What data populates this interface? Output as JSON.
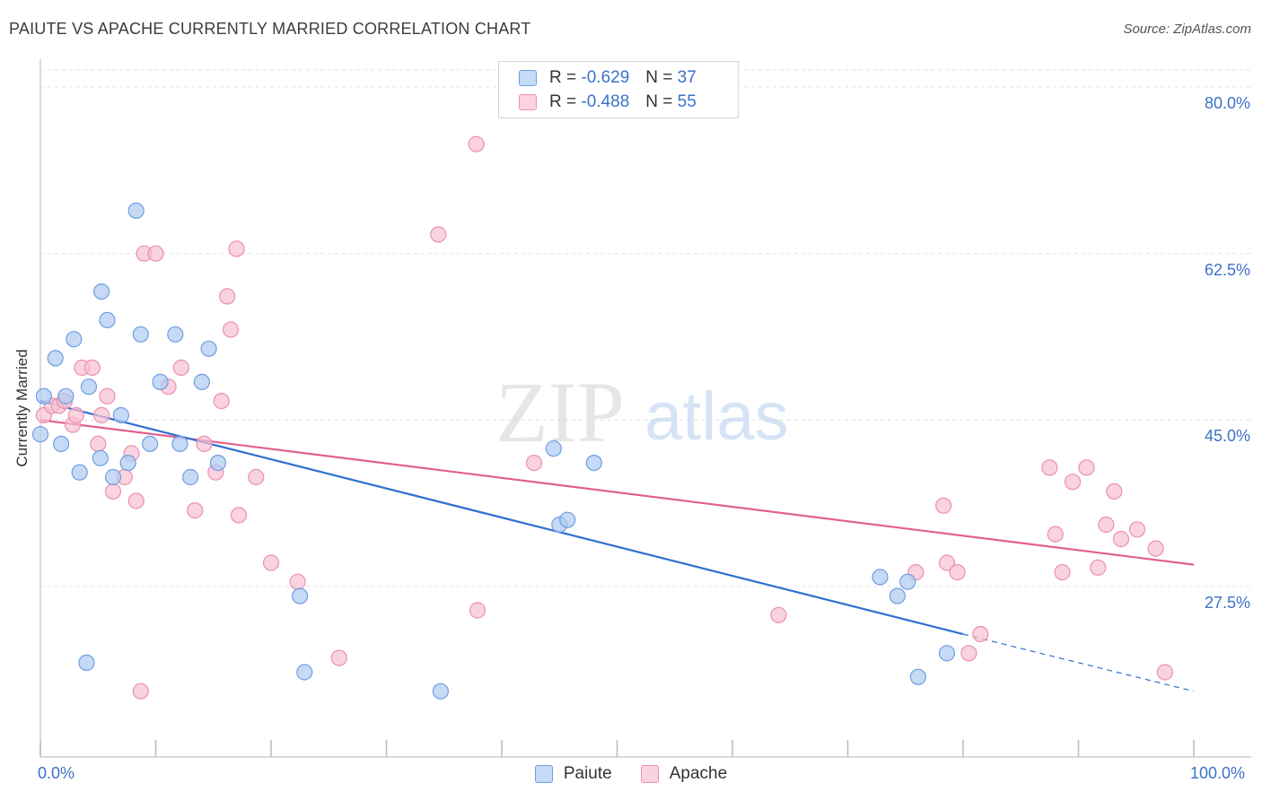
{
  "title": "PAIUTE VS APACHE CURRENTLY MARRIED CORRELATION CHART",
  "source": "Source: ZipAtlas.com",
  "watermark": {
    "zip": "ZIP",
    "atlas": "atlas"
  },
  "legend": {
    "paiute": {
      "r_label": "R =",
      "r_value": "-0.629",
      "n_label": "N =",
      "n_value": "37"
    },
    "apache": {
      "r_label": "R =",
      "r_value": "-0.488",
      "n_label": "N =",
      "n_value": "55"
    }
  },
  "colors": {
    "paiute_fill": "#aecbf2",
    "paiute_stroke": "#6f9de0",
    "paiute_line": "#2e6fd0",
    "apache_fill": "#f7c1d1",
    "apache_stroke": "#ec8fae",
    "apache_line": "#e0608c",
    "tick_text": "#3b72c9",
    "grid": "#e3e3e3"
  },
  "chart_data": {
    "type": "scatter",
    "title": "PAIUTE VS APACHE CURRENTLY MARRIED CORRELATION CHART",
    "xlabel": "",
    "ylabel": "Currently Married",
    "xlim": [
      0,
      100
    ],
    "ylim": [
      10,
      84
    ],
    "x_tick_labels": [
      "0.0%",
      "100.0%"
    ],
    "y_ticks": [
      27.5,
      45.0,
      62.5,
      80.0
    ],
    "y_tick_labels": [
      "27.5%",
      "45.0%",
      "62.5%",
      "80.0%"
    ],
    "grid": true,
    "legend_position": "top-center",
    "series": [
      {
        "name": "Paiute",
        "points": [
          [
            0.0,
            43.5
          ],
          [
            0.3,
            47.5
          ],
          [
            1.3,
            51.5
          ],
          [
            1.8,
            42.5
          ],
          [
            2.2,
            47.5
          ],
          [
            2.9,
            53.5
          ],
          [
            3.4,
            39.5
          ],
          [
            4.2,
            48.5
          ],
          [
            5.2,
            41.0
          ],
          [
            5.3,
            58.5
          ],
          [
            5.8,
            55.5
          ],
          [
            6.3,
            39.0
          ],
          [
            7.0,
            45.5
          ],
          [
            7.6,
            40.5
          ],
          [
            8.3,
            67.0
          ],
          [
            8.7,
            54.0
          ],
          [
            9.5,
            42.5
          ],
          [
            10.4,
            49.0
          ],
          [
            11.7,
            54.0
          ],
          [
            12.1,
            42.5
          ],
          [
            13.0,
            39.0
          ],
          [
            14.0,
            49.0
          ],
          [
            14.6,
            52.5
          ],
          [
            15.4,
            40.5
          ],
          [
            22.5,
            26.5
          ],
          [
            22.9,
            18.5
          ],
          [
            34.7,
            16.5
          ],
          [
            44.5,
            42.0
          ],
          [
            45.0,
            34.0
          ],
          [
            45.7,
            34.5
          ],
          [
            48.0,
            40.5
          ],
          [
            72.8,
            28.5
          ],
          [
            74.3,
            26.5
          ],
          [
            75.2,
            28.0
          ],
          [
            76.1,
            18.0
          ],
          [
            78.6,
            20.5
          ],
          [
            4.0,
            19.5
          ]
        ]
      },
      {
        "name": "Apache",
        "points": [
          [
            0.3,
            45.5
          ],
          [
            1.0,
            46.5
          ],
          [
            1.6,
            46.5
          ],
          [
            2.1,
            47.0
          ],
          [
            2.8,
            44.5
          ],
          [
            3.1,
            45.5
          ],
          [
            3.6,
            50.5
          ],
          [
            4.5,
            50.5
          ],
          [
            5.0,
            42.5
          ],
          [
            5.3,
            45.5
          ],
          [
            5.8,
            47.5
          ],
          [
            6.3,
            37.5
          ],
          [
            7.3,
            39.0
          ],
          [
            7.9,
            41.5
          ],
          [
            8.3,
            36.5
          ],
          [
            8.7,
            16.5
          ],
          [
            9.0,
            62.5
          ],
          [
            10.0,
            62.5
          ],
          [
            11.1,
            48.5
          ],
          [
            12.2,
            50.5
          ],
          [
            13.4,
            35.5
          ],
          [
            14.2,
            42.5
          ],
          [
            15.2,
            39.5
          ],
          [
            15.7,
            47.0
          ],
          [
            16.2,
            58.0
          ],
          [
            16.5,
            54.5
          ],
          [
            17.0,
            63.0
          ],
          [
            17.2,
            35.0
          ],
          [
            18.7,
            39.0
          ],
          [
            20.0,
            30.0
          ],
          [
            22.3,
            28.0
          ],
          [
            25.9,
            20.0
          ],
          [
            34.5,
            64.5
          ],
          [
            37.8,
            74.0
          ],
          [
            37.9,
            25.0
          ],
          [
            42.8,
            40.5
          ],
          [
            64.0,
            24.5
          ],
          [
            75.9,
            29.0
          ],
          [
            78.3,
            36.0
          ],
          [
            78.6,
            30.0
          ],
          [
            79.5,
            29.0
          ],
          [
            81.5,
            22.5
          ],
          [
            80.5,
            20.5
          ],
          [
            87.5,
            40.0
          ],
          [
            88.0,
            33.0
          ],
          [
            88.6,
            29.0
          ],
          [
            89.5,
            38.5
          ],
          [
            90.7,
            40.0
          ],
          [
            91.7,
            29.5
          ],
          [
            92.4,
            34.0
          ],
          [
            93.1,
            37.5
          ],
          [
            93.7,
            32.5
          ],
          [
            95.1,
            33.5
          ],
          [
            96.7,
            31.5
          ],
          [
            97.5,
            18.5
          ]
        ]
      }
    ],
    "trendlines": [
      {
        "name": "Paiute",
        "solid": [
          [
            0,
            47.0
          ],
          [
            80,
            22.5
          ]
        ],
        "dashed": [
          [
            80,
            22.5
          ],
          [
            100,
            16.5
          ]
        ]
      },
      {
        "name": "Apache",
        "solid": [
          [
            0,
            45.0
          ],
          [
            100,
            29.8
          ]
        ]
      }
    ]
  },
  "bottom_legend": [
    {
      "label": "Paiute"
    },
    {
      "label": "Apache"
    }
  ]
}
